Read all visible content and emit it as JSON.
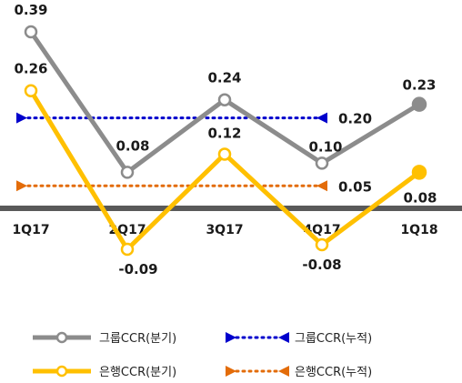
{
  "chart_data": {
    "type": "line",
    "categories": [
      "1Q17",
      "2Q17",
      "3Q17",
      "4Q17",
      "1Q18"
    ],
    "ylim": [
      -0.12,
      0.42
    ],
    "grid": false,
    "legend_position": "bottom",
    "series": [
      {
        "name": "그룹CCR(분기)",
        "values": [
          0.39,
          0.08,
          0.24,
          0.1,
          0.23
        ],
        "labels": [
          "0.39",
          "0.08",
          "0.24",
          "0.10",
          "0.23"
        ],
        "color": "#8c8c8c",
        "style": "solid"
      },
      {
        "name": "은행CCR(분기)",
        "values": [
          0.26,
          -0.09,
          0.12,
          -0.08,
          0.08
        ],
        "labels": [
          "0.26",
          "-0.09",
          "0.12",
          "-0.08",
          "0.08"
        ],
        "color": "#ffc000",
        "style": "solid"
      },
      {
        "name": "그룹CCR(누적)",
        "value": 0.2,
        "label": "0.20",
        "color": "#0000cc",
        "style": "dotted"
      },
      {
        "name": "은행CCR(누적)",
        "value": 0.05,
        "label": "0.05",
        "color": "#e36c09",
        "style": "dotted"
      }
    ]
  }
}
